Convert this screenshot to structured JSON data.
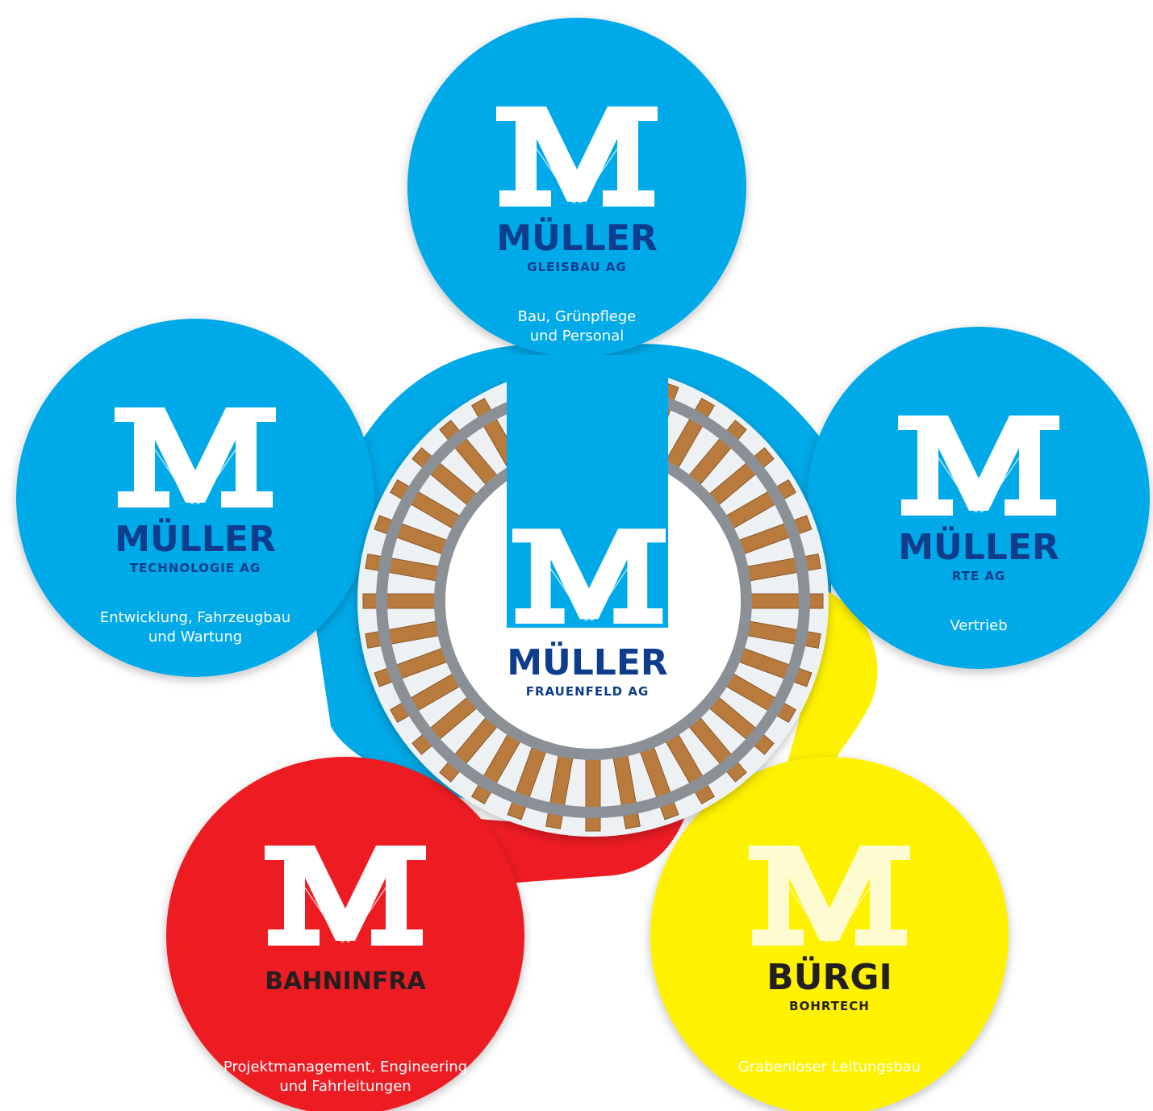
{
  "center": {
    "brand": "MÜLLER",
    "company": "FRAUENFELD AG"
  },
  "nodes": [
    {
      "brand": "MÜLLER",
      "company": "GLEISBAU AG",
      "description": [
        "Bau, Grünpflege",
        "und Personal"
      ]
    },
    {
      "brand": "MÜLLER",
      "company": "TECHNOLOGIE AG",
      "description": [
        "Entwicklung, Fahrzeugbau",
        "und Wartung"
      ]
    },
    {
      "brand": "MÜLLER",
      "company": "RTE AG",
      "description": [
        "Vertrieb"
      ]
    },
    {
      "brand": "BAHNINFRA",
      "description": [
        "Projektmanagement, Engineering",
        "und Fahrleitungen"
      ]
    },
    {
      "brand": "BÜRGI",
      "company": "BOHRTECH",
      "description": [
        "Grabenloser Leitungsbau"
      ]
    }
  ]
}
